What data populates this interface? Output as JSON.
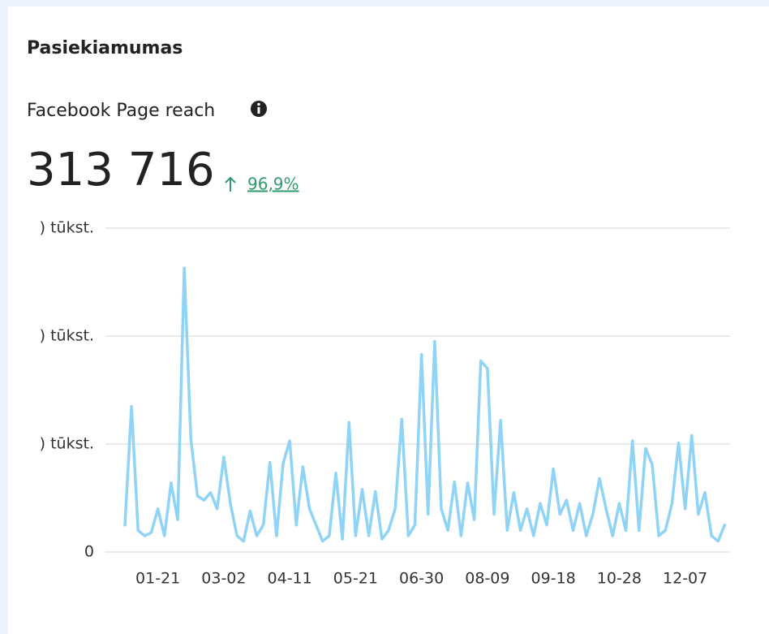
{
  "header": {
    "title": "Pasiekiamumas",
    "metric": "Facebook Page reach",
    "value": "313 716",
    "change": "96,9%"
  },
  "chart_data": {
    "type": "line",
    "color": "#8fd3f7",
    "categories": [
      null,
      null,
      null,
      null,
      null,
      "01-21",
      null,
      null,
      null,
      null,
      null,
      null,
      null,
      null,
      null,
      "03-02",
      null,
      null,
      null,
      null,
      null,
      null,
      null,
      null,
      null,
      "04-11",
      null,
      null,
      null,
      null,
      null,
      null,
      null,
      null,
      null,
      "05-21",
      null,
      null,
      null,
      null,
      null,
      null,
      null,
      null,
      null,
      "06-30",
      null,
      null,
      null,
      null,
      null,
      null,
      null,
      null,
      null,
      "08-09",
      null,
      null,
      null,
      null,
      null,
      null,
      null,
      null,
      null,
      "09-18",
      null,
      null,
      null,
      null,
      null,
      null,
      null,
      null,
      null,
      "10-28",
      null,
      null,
      null,
      null,
      null,
      null,
      null,
      null,
      null,
      "12-07",
      null,
      null,
      null,
      null,
      null,
      null
    ],
    "values": [
      2500,
      13500,
      2000,
      1500,
      1800,
      4000,
      1500,
      6400,
      3000,
      26300,
      10500,
      5200,
      4800,
      5500,
      4000,
      8800,
      4500,
      1500,
      1000,
      3800,
      1500,
      2500,
      8300,
      1500,
      8200,
      10300,
      2500,
      7900,
      4000,
      2500,
      1000,
      1500,
      7300,
      1200,
      12000,
      1500,
      5800,
      1500,
      5600,
      1200,
      2000,
      4000,
      12300,
      1500,
      2500,
      18300,
      3500,
      19500,
      4000,
      2000,
      6500,
      1500,
      6400,
      3000,
      17700,
      17000,
      3500,
      12200,
      2000,
      5500,
      2000,
      4000,
      1500,
      4500,
      2500,
      7700,
      3500,
      4800,
      2000,
      4500,
      1500,
      3500,
      6800,
      4000,
      1500,
      4500,
      2000,
      10300,
      2000,
      9600,
      8100,
      1500,
      2000,
      4500,
      10100,
      4000,
      10800,
      3500,
      5500,
      1500,
      1000,
      2500
    ],
    "ylim": [
      0,
      30000
    ],
    "yticks": [
      0,
      {
        "value": 10000,
        "label": ") tūkst."
      },
      {
        "value": 20000,
        "label": ") tūkst."
      },
      {
        "value": 30000,
        "label": ") tūkst."
      }
    ],
    "grid": true
  }
}
